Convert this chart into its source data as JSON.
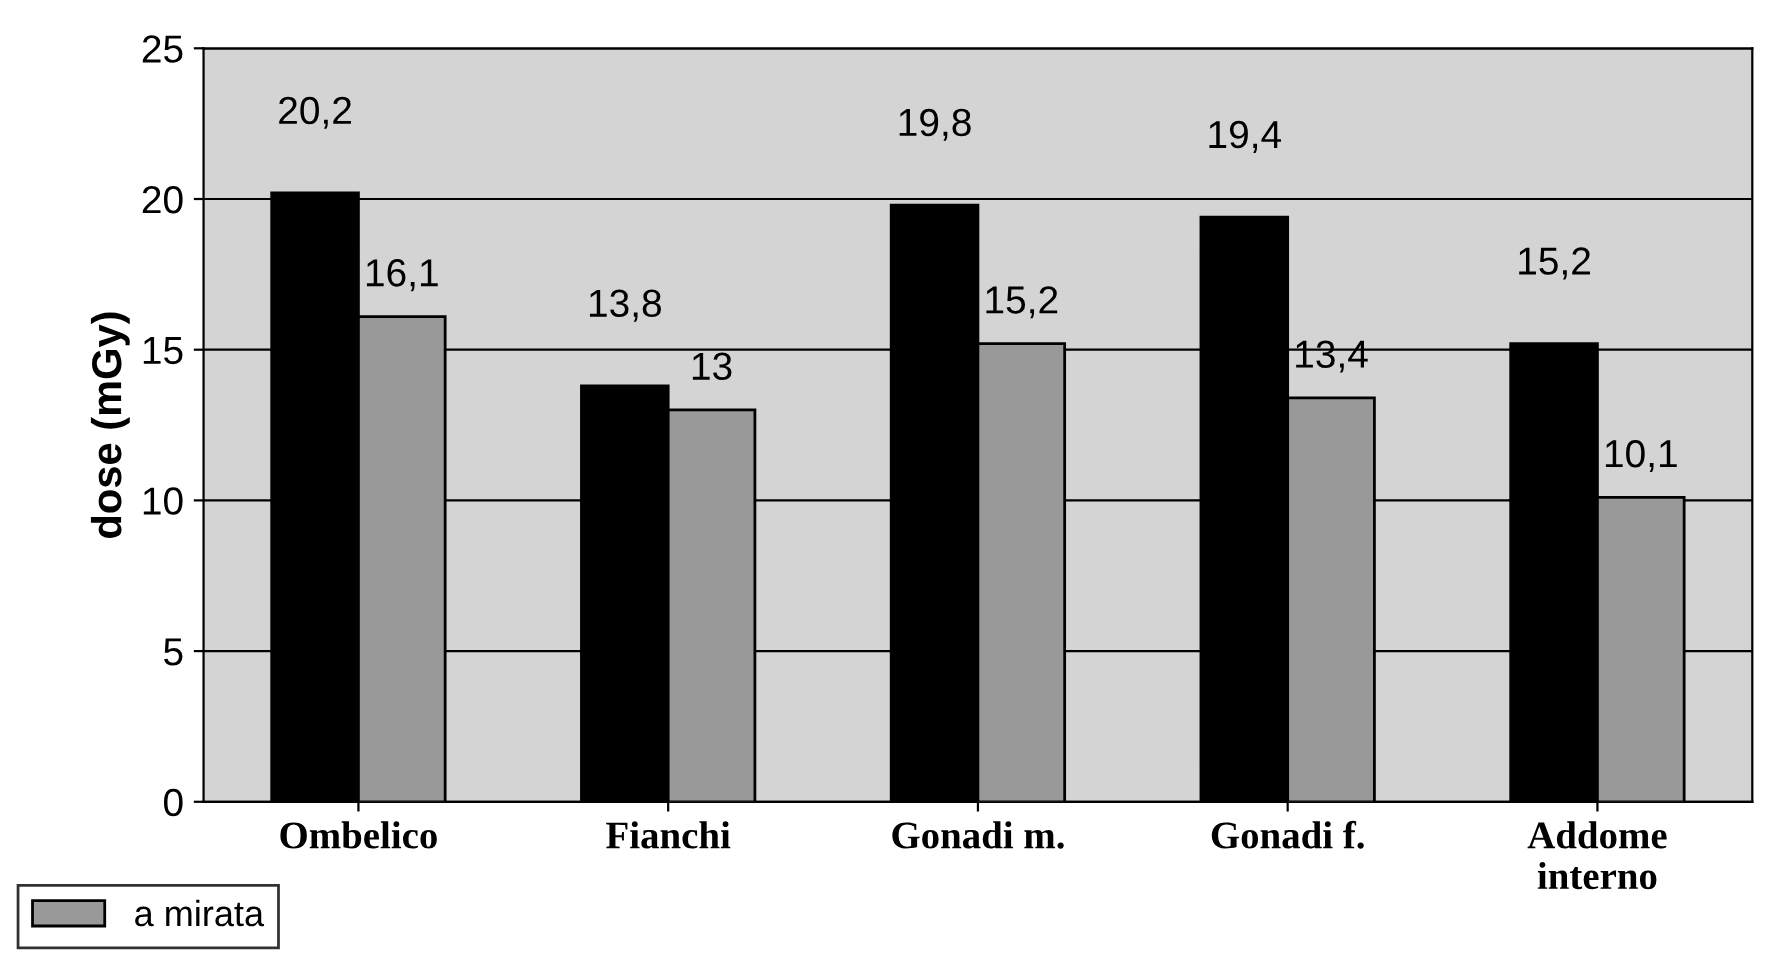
{
  "chart_data": {
    "type": "bar",
    "ylabel": "dose (mGy)",
    "categories": [
      "Ombelico",
      "Fianchi",
      "Gonadi m.",
      "Gonadi f.",
      "Addome\ninterno"
    ],
    "series": [
      {
        "color": "#000000",
        "values": [
          20.2,
          13.8,
          19.8,
          19.4,
          15.2
        ],
        "value_labels": [
          "20,2",
          "13,8",
          "19,8",
          "19,4",
          "15,2"
        ]
      },
      {
        "name": "a mirata",
        "color": "#999999",
        "values": [
          16.1,
          13,
          15.2,
          13.4,
          10.1
        ],
        "value_labels": [
          "16,1",
          "13",
          "15,2",
          "13,4",
          "10,1"
        ]
      }
    ],
    "ylim": [
      0,
      25
    ],
    "yticks": [
      0,
      5,
      10,
      15,
      20,
      25
    ],
    "grid": "y",
    "legend": "bottom left"
  }
}
